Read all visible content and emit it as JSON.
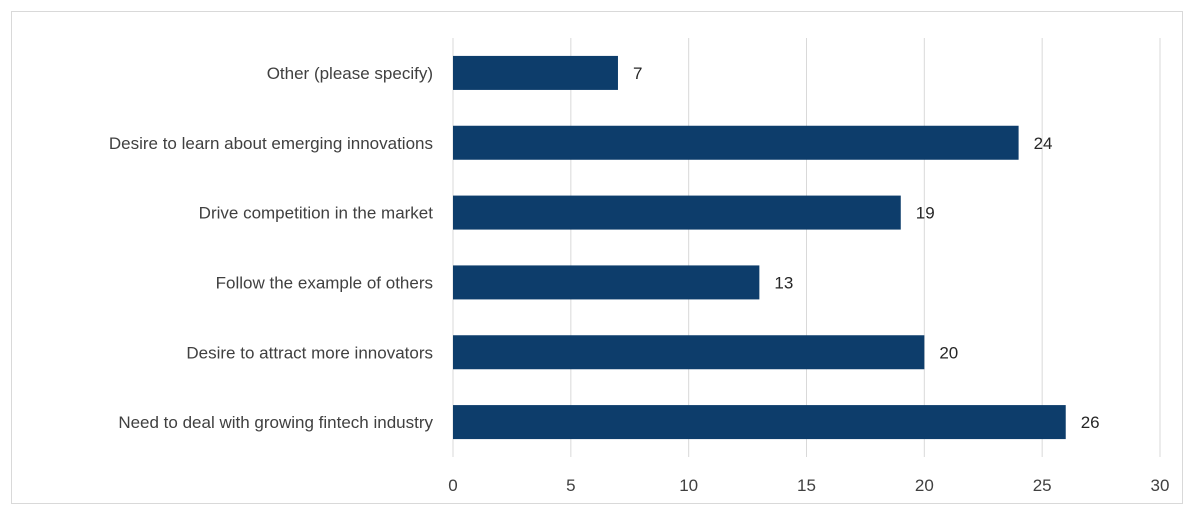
{
  "chart_data": {
    "type": "bar",
    "orientation": "horizontal",
    "categories": [
      "Other (please specify)",
      "Desire to learn about emerging innovations",
      "Drive competition in the market",
      "Follow the example of others",
      "Desire to attract more innovators",
      "Need to deal with growing fintech industry"
    ],
    "values": [
      7,
      24,
      19,
      13,
      20,
      26
    ],
    "x_ticks": [
      0,
      5,
      10,
      15,
      20,
      25,
      30
    ],
    "xlim": [
      0,
      30
    ],
    "grid": "vertical",
    "legend": "none",
    "data_labels": true,
    "bar_color": "#0d3d6b"
  }
}
